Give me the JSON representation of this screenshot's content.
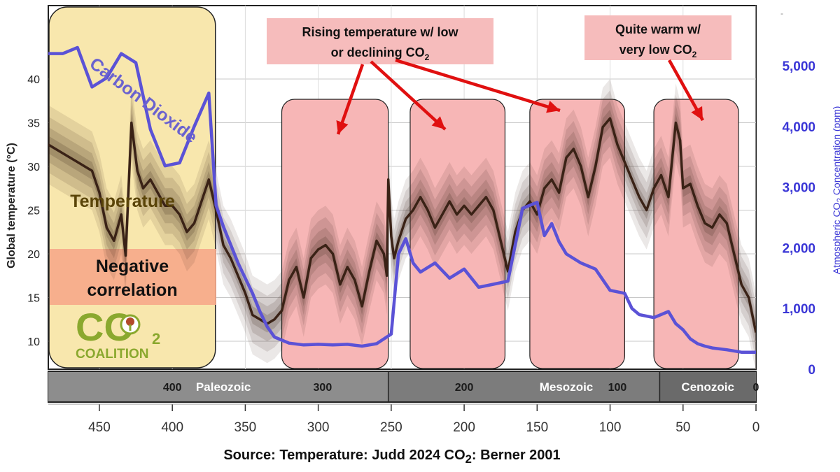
{
  "chart_data": {
    "type": "line",
    "xlabel": "",
    "xlim": [
      485,
      0
    ],
    "x_ticks": [
      450,
      400,
      350,
      300,
      250,
      200,
      150,
      100,
      50,
      0
    ],
    "y_left": {
      "label": "Global temperature (°C)",
      "ylim": [
        6,
        48
      ],
      "ticks": [
        10,
        15,
        20,
        25,
        30,
        35,
        40
      ]
    },
    "y_right": {
      "label_parts": [
        "Atmospheric CO",
        "2",
        " Concentration (ppm)"
      ],
      "ylim": [
        -300,
        6000
      ],
      "ticks": [
        0,
        1000,
        2000,
        3000,
        4000,
        5000
      ],
      "tick_labels": [
        "0",
        "1,000",
        "2,000",
        "3,000",
        "4,000",
        "5,000"
      ]
    },
    "series": [
      {
        "name": "Temperature",
        "axis": "left",
        "color": "#3a2216",
        "x": [
          485,
          475,
          465,
          455,
          450,
          445,
          440,
          435,
          432,
          428,
          424,
          420,
          415,
          410,
          405,
          400,
          395,
          390,
          385,
          380,
          375,
          370,
          365,
          360,
          355,
          350,
          345,
          340,
          335,
          330,
          325,
          320,
          315,
          310,
          305,
          300,
          295,
          290,
          285,
          280,
          275,
          270,
          265,
          260,
          255,
          253,
          252,
          250,
          248,
          245,
          240,
          235,
          230,
          225,
          220,
          215,
          210,
          205,
          200,
          195,
          190,
          185,
          180,
          175,
          170,
          165,
          160,
          155,
          150,
          145,
          140,
          135,
          130,
          125,
          120,
          115,
          110,
          105,
          100,
          95,
          90,
          85,
          80,
          75,
          70,
          65,
          60,
          55,
          52,
          50,
          45,
          40,
          35,
          30,
          25,
          20,
          15,
          10,
          5,
          0
        ],
        "y": [
          32.5,
          31.5,
          30.5,
          29.5,
          27.0,
          23.0,
          21.5,
          24.5,
          19.8,
          35.0,
          29.5,
          27.5,
          28.5,
          27.0,
          25.5,
          25.5,
          24.5,
          22.5,
          23.5,
          26.0,
          28.5,
          25.0,
          21.0,
          19.5,
          17.5,
          15.5,
          13.0,
          12.5,
          12.0,
          12.5,
          13.5,
          17.0,
          18.5,
          15.0,
          19.5,
          20.5,
          21.0,
          20.0,
          16.5,
          18.5,
          17.0,
          14.0,
          18.0,
          21.5,
          20.0,
          17.5,
          28.5,
          22.0,
          19.5,
          21.5,
          24.0,
          25.0,
          26.5,
          25.0,
          23.0,
          24.5,
          26.0,
          24.5,
          25.5,
          24.5,
          25.5,
          26.5,
          25.0,
          21.5,
          18.0,
          22.5,
          25.0,
          26.0,
          24.5,
          27.5,
          28.5,
          27.0,
          31.0,
          32.0,
          30.0,
          26.5,
          30.0,
          34.5,
          35.5,
          32.5,
          30.5,
          28.5,
          26.5,
          25.0,
          27.5,
          29.0,
          26.5,
          35.0,
          33.0,
          27.5,
          28.0,
          25.5,
          23.5,
          23.0,
          24.5,
          23.5,
          20.0,
          16.5,
          15.0,
          11.0
        ]
      },
      {
        "name": "Carbon Dioxide",
        "axis": "right",
        "color": "#5b52d6",
        "x": [
          485,
          475,
          465,
          455,
          445,
          435,
          425,
          415,
          405,
          395,
          385,
          375,
          370,
          365,
          360,
          355,
          345,
          340,
          335,
          330,
          320,
          310,
          300,
          290,
          280,
          270,
          260,
          250,
          245,
          240,
          235,
          230,
          220,
          210,
          200,
          190,
          180,
          170,
          160,
          150,
          145,
          140,
          135,
          130,
          120,
          110,
          100,
          90,
          85,
          80,
          70,
          60,
          55,
          50,
          45,
          40,
          35,
          30,
          20,
          10,
          0
        ],
        "y": [
          5200,
          5200,
          5300,
          4650,
          4800,
          5200,
          5050,
          3950,
          3350,
          3400,
          4000,
          4550,
          2700,
          2350,
          2050,
          1750,
          1250,
          950,
          700,
          530,
          430,
          400,
          410,
          400,
          410,
          380,
          420,
          580,
          1900,
          2150,
          1750,
          1600,
          1750,
          1500,
          1650,
          1350,
          1400,
          1450,
          2650,
          2750,
          2200,
          2400,
          2100,
          1900,
          1750,
          1650,
          1300,
          1250,
          1000,
          900,
          850,
          950,
          750,
          650,
          500,
          420,
          380,
          350,
          320,
          280,
          280
        ]
      }
    ],
    "geologic_scale": {
      "labels": [
        {
          "age": 400,
          "text": "400",
          "kind": "number"
        },
        {
          "age": 365,
          "text": "Paleozoic",
          "kind": "era"
        },
        {
          "age": 297,
          "text": "300",
          "kind": "number"
        },
        {
          "age": 200,
          "text": "200",
          "kind": "number"
        },
        {
          "age": 130,
          "text": "Mesozoic",
          "kind": "era"
        },
        {
          "age": 95,
          "text": "100",
          "kind": "number"
        },
        {
          "age": 33,
          "text": "Cenozoic",
          "kind": "era"
        },
        {
          "age": 0,
          "text": "0",
          "kind": "number"
        }
      ],
      "eras": [
        {
          "from": 485,
          "to": 252,
          "color": "#8d8d8d"
        },
        {
          "from": 252,
          "to": 66,
          "color": "#7c7c7c"
        },
        {
          "from": 66,
          "to": 0,
          "color": "#6a6a6a"
        }
      ]
    },
    "boxes": [
      {
        "from": 485,
        "to": 370,
        "style": "yellow"
      },
      {
        "from": 325,
        "to": 252,
        "style": "pink"
      },
      {
        "from": 237,
        "to": 172,
        "style": "pink"
      },
      {
        "from": 155,
        "to": 90,
        "style": "pink"
      },
      {
        "from": 70,
        "to": 12,
        "style": "pink"
      }
    ],
    "annotations": {
      "callout_1": {
        "line1": "Rising temperature w/ low",
        "line2_pre": "or declining CO",
        "line2_sub": "2"
      },
      "callout_2": {
        "line1": "Quite warm w/",
        "line2_pre": "very low CO",
        "line2_sub": "2"
      },
      "co2_series_label": "Carbon Dioxide",
      "temperature_label": "Temperature",
      "negative_correlation_line1": "Negative",
      "negative_correlation_line2": "correlation"
    },
    "colors": {
      "axis_co2": "#3a36d6",
      "arrow": "#e01010",
      "pink_box": "#f7b6b6",
      "yellow_box": "#f8e7ad",
      "callout_bg": "#f6bcbc"
    }
  },
  "logo": {
    "main": "CO",
    "sub": "2",
    "word": "COALITION",
    "color": "#8aa82e"
  },
  "source": {
    "prefix": "Source: Temperature: Judd 2024    CO",
    "sub": "2",
    "suffix": ": Berner 2001"
  }
}
